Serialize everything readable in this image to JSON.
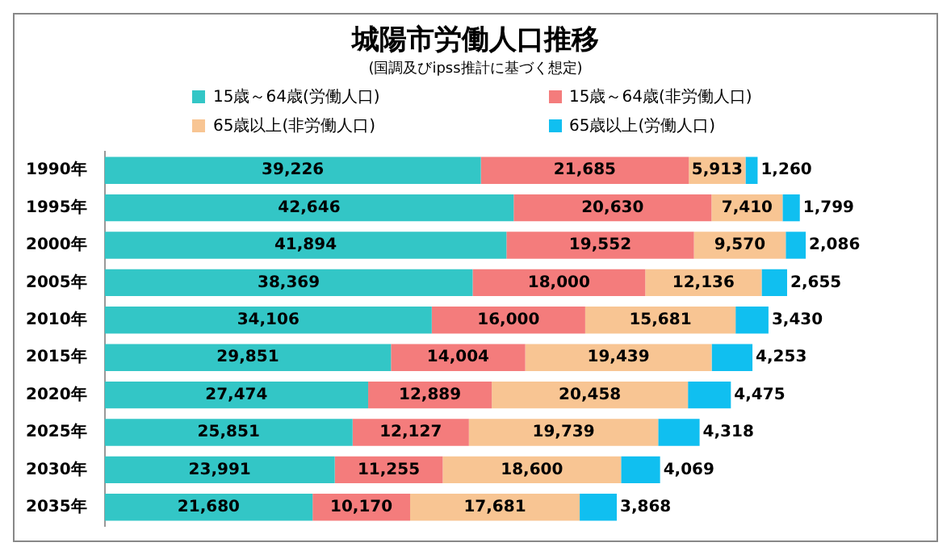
{
  "chart_data": {
    "type": "bar",
    "orientation": "horizontal",
    "stacked": true,
    "title": "城陽市労働人口推移",
    "subtitle": "(国調及びipss推計に基づく想定)",
    "legend": "top",
    "tick_labels": "y",
    "categories": [
      "1990年",
      "1995年",
      "2000年",
      "2005年",
      "2010年",
      "2015年",
      "2020年",
      "2025年",
      "2030年",
      "2035年"
    ],
    "series": [
      {
        "name": "15歳～64歳(労働人口)",
        "color": "#33c6c6",
        "values": [
          39226,
          42646,
          41894,
          38369,
          34106,
          29851,
          27474,
          25851,
          23991,
          21680
        ],
        "value_labels": [
          "39,226",
          "42,646",
          "41,894",
          "38,369",
          "34,106",
          "29,851",
          "27,474",
          "25,851",
          "23,991",
          "21,680"
        ]
      },
      {
        "name": "15歳～64歳(非労働人口)",
        "color": "#f47c7c",
        "values": [
          21685,
          20630,
          19552,
          18000,
          16000,
          14004,
          12889,
          12127,
          11255,
          10170
        ],
        "value_labels": [
          "21,685",
          "20,630",
          "19,552",
          "18,000",
          "16,000",
          "14,004",
          "12,889",
          "12,127",
          "11,255",
          "10,170"
        ]
      },
      {
        "name": "65歳以上(非労働人口)",
        "color": "#f8c593",
        "values": [
          5913,
          7410,
          9570,
          12136,
          15681,
          19439,
          20458,
          19739,
          18600,
          17681
        ],
        "value_labels": [
          "5,913",
          "7,410",
          "9,570",
          "12,136",
          "15,681",
          "19,439",
          "20,458",
          "19,739",
          "18,600",
          "17,681"
        ]
      },
      {
        "name": "65歳以上(労働人口)",
        "color": "#10bff0",
        "values": [
          1260,
          1799,
          2086,
          2655,
          3430,
          4253,
          4475,
          4318,
          4069,
          3868
        ],
        "value_labels": [
          "1,260",
          "1,799",
          "2,086",
          "2,655",
          "3,430",
          "4,253",
          "4,475",
          "4,318",
          "4,069",
          "3,868"
        ]
      }
    ]
  }
}
